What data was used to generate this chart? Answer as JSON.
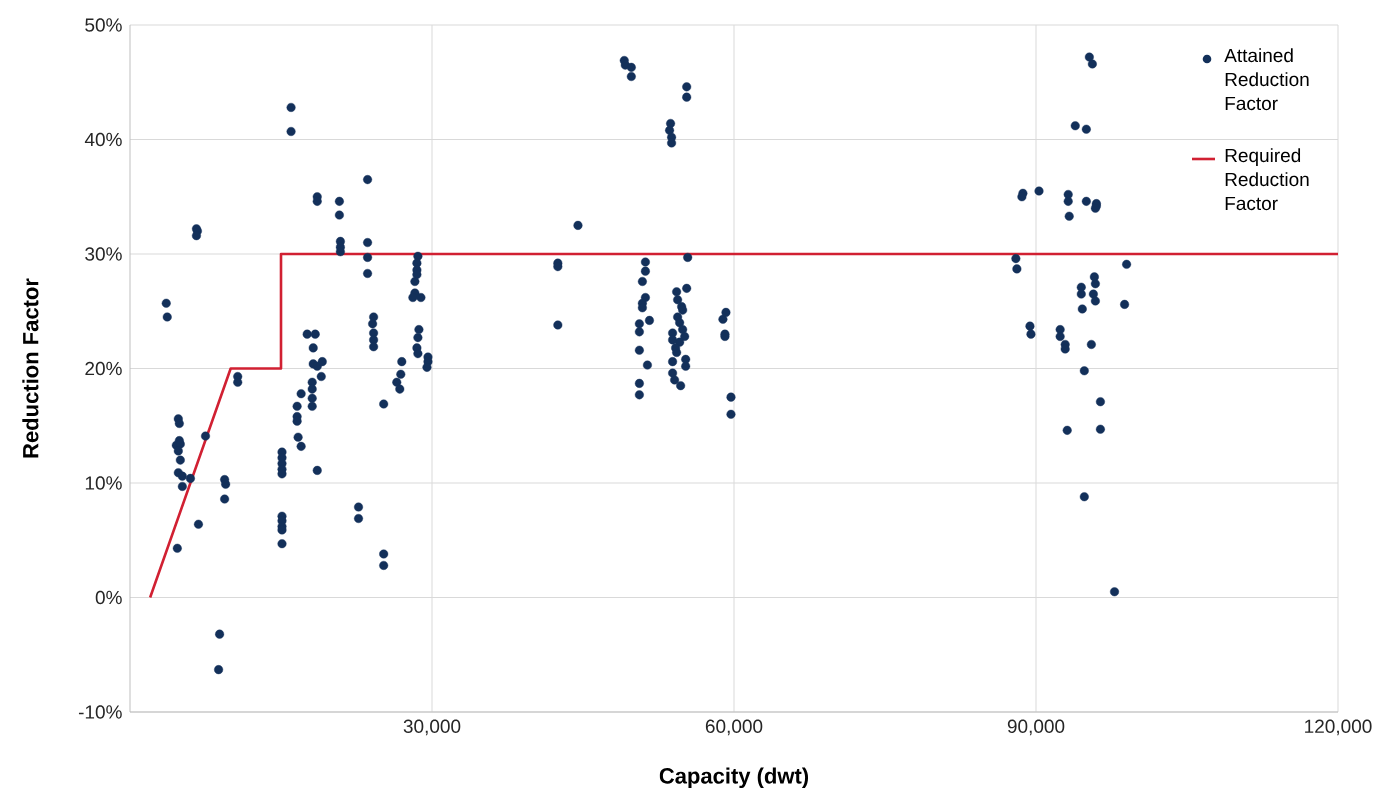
{
  "chart_data": {
    "type": "scatter",
    "xlabel": "Capacity (dwt)",
    "ylabel": "Reduction Factor",
    "xlim": [
      0,
      120000
    ],
    "ylim": [
      -10,
      50
    ],
    "xticks": [
      {
        "value": 30000,
        "label": "30,000"
      },
      {
        "value": 60000,
        "label": "60,000"
      },
      {
        "value": 90000,
        "label": "90,000"
      },
      {
        "value": 120000,
        "label": "120,000"
      }
    ],
    "yticks": [
      {
        "value": -10,
        "label": "-10%"
      },
      {
        "value": 0,
        "label": "0%"
      },
      {
        "value": 10,
        "label": "10%"
      },
      {
        "value": 20,
        "label": "20%"
      },
      {
        "value": 30,
        "label": "30%"
      },
      {
        "value": 40,
        "label": "40%"
      },
      {
        "value": 50,
        "label": "50%"
      }
    ],
    "grid": true,
    "legend": "top right",
    "series": [
      {
        "name": "Attained Reduction Factor",
        "marker": "circle",
        "color": "#13305a",
        "x": [
          3600,
          3700,
          4700,
          4800,
          4900,
          4600,
          4900,
          5000,
          4800,
          5000,
          4800,
          5200,
          5200,
          6000,
          6600,
          6700,
          6600,
          6800,
          7500,
          9400,
          9500,
          9400,
          8900,
          8800,
          10700,
          10700,
          15100,
          15100,
          15100,
          15100,
          15100,
          15100,
          15100,
          15100,
          15100,
          15100,
          16000,
          16000,
          18600,
          18600,
          20800,
          20800,
          20900,
          20900,
          20900,
          23600,
          23600,
          23600,
          23600,
          24200,
          24100,
          24200,
          24200,
          24200,
          17600,
          18400,
          18200,
          18200,
          18600,
          19100,
          19000,
          18100,
          18100,
          18100,
          18100,
          17000,
          16600,
          16600,
          16600,
          16700,
          17000,
          18600,
          22700,
          22700,
          25200,
          25200,
          25200,
          27000,
          26900,
          26500,
          26800,
          28600,
          28500,
          28500,
          28500,
          28300,
          28300,
          28100,
          28900,
          28700,
          28600,
          28500,
          28600,
          29600,
          29600,
          29500,
          42500,
          42500,
          42500,
          44500,
          49100,
          49200,
          49800,
          49800,
          55300,
          55300,
          53700,
          53600,
          53800,
          53800,
          51200,
          51200,
          50900,
          51200,
          50900,
          50900,
          51600,
          50600,
          50600,
          50600,
          51400,
          50600,
          50600,
          55400,
          55300,
          54300,
          54400,
          54800,
          54400,
          54600,
          54900,
          53900,
          55100,
          54600,
          54300,
          53900,
          55200,
          55200,
          53900,
          54100,
          54700,
          58900,
          59200,
          59100,
          59100,
          59700,
          59700,
          53900,
          54200,
          54900,
          95300,
          95600,
          93900,
          95000,
          88700,
          88600,
          90300,
          93200,
          93200,
          93300,
          95000,
          96000,
          96000,
          95900,
          88000,
          88100,
          99000,
          98800,
          95800,
          95900,
          94500,
          94500,
          95700,
          95900,
          94600,
          89400,
          89500,
          92400,
          92400,
          92900,
          92900,
          95500,
          94800,
          96400,
          93100,
          96400,
          94800,
          97800
        ],
        "values": [
          25.7,
          24.5,
          4.3,
          15.6,
          15.2,
          13.3,
          13.7,
          13.4,
          12.8,
          12.0,
          10.9,
          10.6,
          9.7,
          10.4,
          32.2,
          32.0,
          31.6,
          6.4,
          14.1,
          10.3,
          9.9,
          8.6,
          -3.2,
          -6.3,
          19.3,
          18.8,
          12.7,
          12.2,
          11.7,
          11.2,
          10.8,
          7.1,
          6.7,
          6.2,
          5.9,
          4.7,
          42.8,
          40.7,
          35.0,
          34.6,
          34.6,
          33.4,
          31.1,
          30.6,
          30.2,
          36.5,
          31.0,
          29.7,
          28.3,
          24.5,
          23.9,
          23.1,
          22.5,
          21.9,
          23.0,
          23.0,
          21.8,
          20.4,
          20.2,
          20.6,
          19.3,
          18.8,
          18.2,
          17.4,
          16.7,
          17.8,
          16.7,
          15.8,
          15.4,
          14.0,
          13.2,
          11.1,
          7.9,
          6.9,
          3.8,
          2.8,
          16.9,
          20.6,
          19.5,
          18.8,
          18.2,
          29.8,
          29.2,
          28.6,
          28.2,
          27.6,
          26.6,
          26.2,
          26.2,
          23.4,
          22.7,
          21.8,
          21.3,
          21.0,
          20.6,
          20.1,
          29.2,
          28.9,
          23.8,
          32.5,
          46.9,
          46.5,
          46.3,
          45.5,
          44.6,
          43.7,
          41.4,
          40.8,
          40.2,
          39.7,
          29.3,
          28.5,
          27.6,
          26.2,
          25.7,
          25.3,
          24.2,
          23.9,
          23.2,
          21.6,
          20.3,
          18.7,
          17.7,
          29.7,
          27.0,
          26.7,
          26.0,
          25.4,
          24.5,
          24.0,
          23.4,
          23.1,
          22.8,
          22.3,
          21.4,
          20.6,
          20.8,
          20.2,
          19.6,
          19.0,
          18.5,
          24.3,
          24.9,
          23.0,
          22.8,
          17.5,
          16.0,
          22.5,
          21.8,
          25.1,
          47.2,
          46.6,
          41.2,
          40.9,
          35.3,
          35.0,
          35.5,
          35.2,
          34.6,
          33.3,
          34.6,
          34.4,
          34.2,
          34.0,
          29.6,
          28.7,
          29.1,
          25.6,
          28.0,
          27.4,
          27.1,
          26.5,
          26.5,
          25.9,
          25.2,
          23.7,
          23.0,
          23.4,
          22.8,
          22.1,
          21.7,
          22.1,
          19.8,
          17.1,
          14.6,
          14.7,
          8.8,
          0.5
        ]
      },
      {
        "name": "Required Reduction Factor",
        "type": "line",
        "marker": "none",
        "line_style": "solid",
        "color": "#d12032",
        "x": [
          2000,
          10000,
          15000,
          15000,
          120000
        ],
        "values": [
          0,
          20,
          20,
          30,
          30
        ]
      }
    ]
  }
}
